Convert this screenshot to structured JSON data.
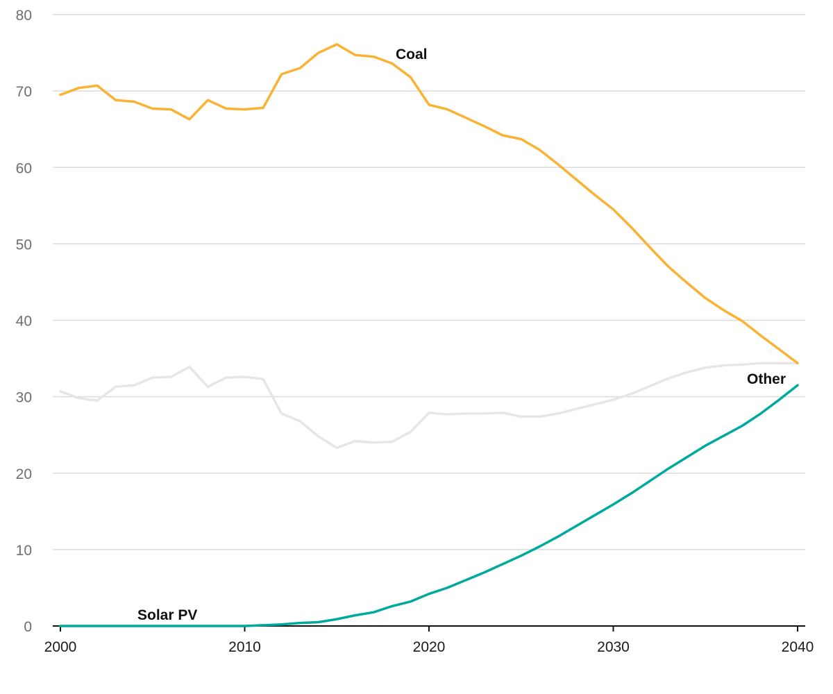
{
  "chart_data": {
    "type": "line",
    "title": "",
    "xlabel": "",
    "ylabel": "",
    "xlim": [
      2000,
      2040
    ],
    "ylim": [
      0,
      80
    ],
    "y_ticks": [
      0,
      10,
      20,
      30,
      40,
      50,
      60,
      70,
      80
    ],
    "x_ticks": [
      2000,
      2010,
      2020,
      2030,
      2040
    ],
    "y_tick_labels": [
      "0",
      "10",
      "20",
      "30",
      "40",
      "50",
      "60",
      "70",
      "80"
    ],
    "x_tick_labels": [
      "2000",
      "2010",
      "2020",
      "2030",
      "2040"
    ],
    "grid": "horizontal",
    "legend": "none (direct labels)",
    "x": [
      2000,
      2001,
      2002,
      2003,
      2004,
      2005,
      2006,
      2007,
      2008,
      2009,
      2010,
      2011,
      2012,
      2013,
      2014,
      2015,
      2016,
      2017,
      2018,
      2019,
      2020,
      2021,
      2022,
      2023,
      2024,
      2025,
      2026,
      2027,
      2028,
      2029,
      2030,
      2031,
      2032,
      2033,
      2034,
      2035,
      2036,
      2037,
      2038,
      2039,
      2040
    ],
    "series": [
      {
        "name": "Coal",
        "color": "#f9b233",
        "values": [
          69.5,
          70.4,
          70.7,
          68.8,
          68.6,
          67.7,
          67.6,
          66.3,
          68.8,
          67.7,
          67.6,
          67.8,
          72.2,
          73.0,
          75.0,
          76.1,
          74.7,
          74.5,
          73.6,
          71.8,
          68.2,
          67.6,
          66.5,
          65.4,
          64.2,
          63.7,
          62.3,
          60.4,
          58.4,
          56.4,
          54.5,
          52.1,
          49.5,
          47.0,
          44.9,
          42.9,
          41.3,
          39.9,
          38.0,
          36.2,
          34.4
        ]
      },
      {
        "name": "Other",
        "color": "#e6e6e6",
        "values": [
          30.7,
          29.8,
          29.5,
          31.3,
          31.5,
          32.5,
          32.6,
          33.9,
          31.3,
          32.5,
          32.6,
          32.3,
          27.8,
          26.8,
          24.8,
          23.3,
          24.2,
          24.0,
          24.1,
          25.4,
          27.9,
          27.7,
          27.8,
          27.8,
          27.9,
          27.4,
          27.4,
          27.8,
          28.4,
          29.0,
          29.6,
          30.4,
          31.4,
          32.4,
          33.2,
          33.8,
          34.1,
          34.2,
          34.4,
          34.4,
          34.4
        ]
      },
      {
        "name": "Solar PV",
        "color": "#00a99d",
        "values": [
          0.0,
          0.0,
          0.0,
          0.0,
          0.0,
          0.0,
          0.0,
          0.0,
          0.0,
          0.0,
          0.0,
          0.1,
          0.2,
          0.4,
          0.5,
          0.9,
          1.4,
          1.8,
          2.6,
          3.2,
          4.2,
          5.0,
          6.0,
          7.0,
          8.1,
          9.2,
          10.4,
          11.7,
          13.1,
          14.5,
          15.9,
          17.4,
          19.0,
          20.6,
          22.1,
          23.6,
          24.9,
          26.2,
          27.8,
          29.6,
          31.5
        ]
      }
    ]
  },
  "labels": {
    "coal": "Coal",
    "other": "Other",
    "solar": "Solar PV"
  }
}
